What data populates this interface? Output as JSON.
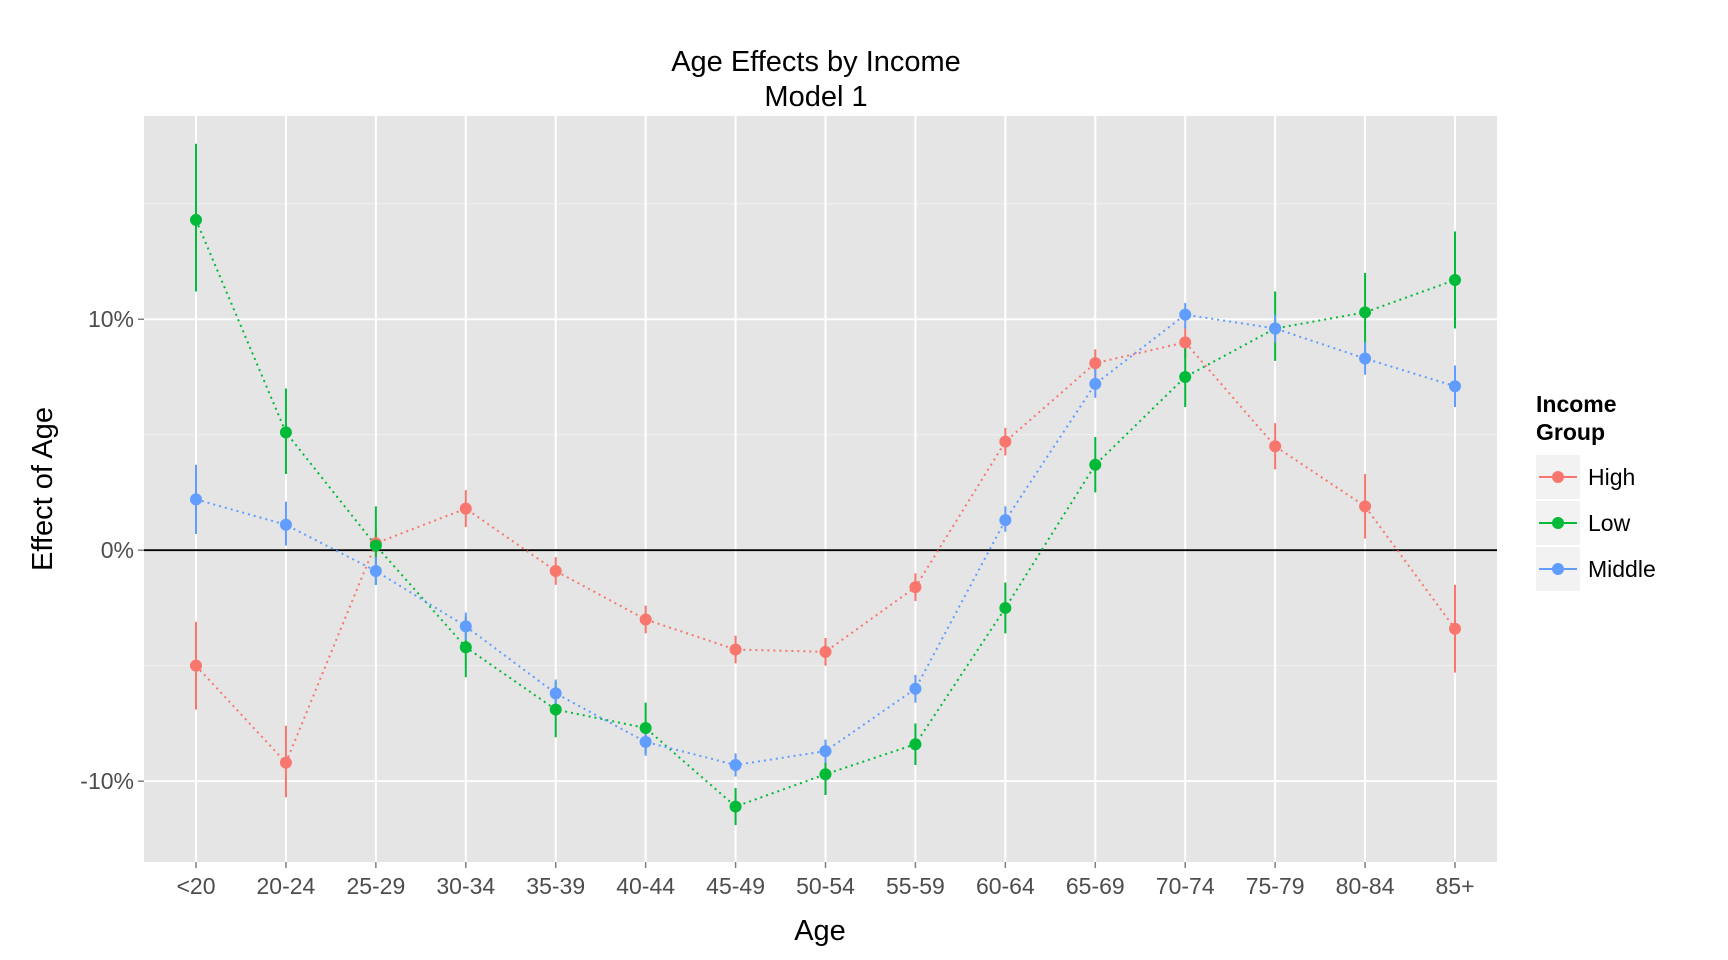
{
  "chart_data": {
    "type": "line",
    "title": "Age Effects by Income",
    "subtitle": "Model 1",
    "xlabel": "Age",
    "ylabel": "Effect of Age",
    "categories": [
      "<20",
      "20-24",
      "25-29",
      "30-34",
      "35-39",
      "40-44",
      "45-49",
      "50-54",
      "55-59",
      "60-64",
      "65-69",
      "70-74",
      "75-79",
      "80-84",
      "85+"
    ],
    "y_ticks": [
      -10,
      0,
      10
    ],
    "y_tick_labels": [
      "-10%",
      "0%",
      "10%"
    ],
    "ylim": [
      -13.5,
      18.8
    ],
    "y_units": "percent",
    "grid": true,
    "zero_line": true,
    "error_bars": true,
    "line_style": "dotted",
    "legend": {
      "title_line1": "Income",
      "title_line2": "Group",
      "placement": "right"
    },
    "series": [
      {
        "name": "High",
        "color": "#F8766D",
        "values": [
          -5.0,
          -9.2,
          0.3,
          1.8,
          -0.9,
          -3.0,
          -4.3,
          -4.4,
          -1.6,
          4.7,
          8.1,
          9.0,
          4.5,
          1.9,
          -3.4
        ],
        "lower": [
          -6.9,
          -10.7,
          -0.3,
          1.0,
          -1.5,
          -3.6,
          -4.9,
          -5.0,
          -2.2,
          4.1,
          7.4,
          8.3,
          3.5,
          0.5,
          -5.3
        ],
        "upper": [
          -3.1,
          -7.6,
          0.9,
          2.6,
          -0.3,
          -2.4,
          -3.7,
          -3.8,
          -1.0,
          5.3,
          8.7,
          9.7,
          5.5,
          3.3,
          -1.5
        ]
      },
      {
        "name": "Low",
        "color": "#00BA38",
        "values": [
          14.3,
          5.1,
          0.2,
          -4.2,
          -6.9,
          -7.7,
          -11.1,
          -9.7,
          -8.4,
          -2.5,
          3.7,
          7.5,
          9.6,
          10.3,
          11.7
        ],
        "lower": [
          11.2,
          3.3,
          -1.5,
          -5.5,
          -8.1,
          -8.8,
          -11.9,
          -10.6,
          -9.3,
          -3.6,
          2.5,
          6.2,
          8.2,
          8.6,
          9.6
        ],
        "upper": [
          17.6,
          7.0,
          1.9,
          -2.9,
          -5.7,
          -6.6,
          -10.3,
          -8.8,
          -7.5,
          -1.4,
          4.9,
          8.8,
          11.2,
          12.0,
          13.8
        ]
      },
      {
        "name": "Middle",
        "color": "#619CFF",
        "values": [
          2.2,
          1.1,
          -0.9,
          -3.3,
          -6.2,
          -8.3,
          -9.3,
          -8.7,
          -6.0,
          1.3,
          7.2,
          10.2,
          9.6,
          8.3,
          7.1
        ],
        "lower": [
          0.7,
          0.2,
          -1.5,
          -3.9,
          -6.8,
          -8.9,
          -9.8,
          -9.2,
          -6.6,
          0.8,
          6.6,
          9.6,
          9.0,
          7.6,
          6.2
        ],
        "upper": [
          3.7,
          2.1,
          -0.3,
          -2.7,
          -5.6,
          -7.7,
          -8.8,
          -8.2,
          -5.4,
          1.9,
          7.9,
          10.7,
          10.2,
          9.0,
          8.0
        ]
      }
    ]
  }
}
